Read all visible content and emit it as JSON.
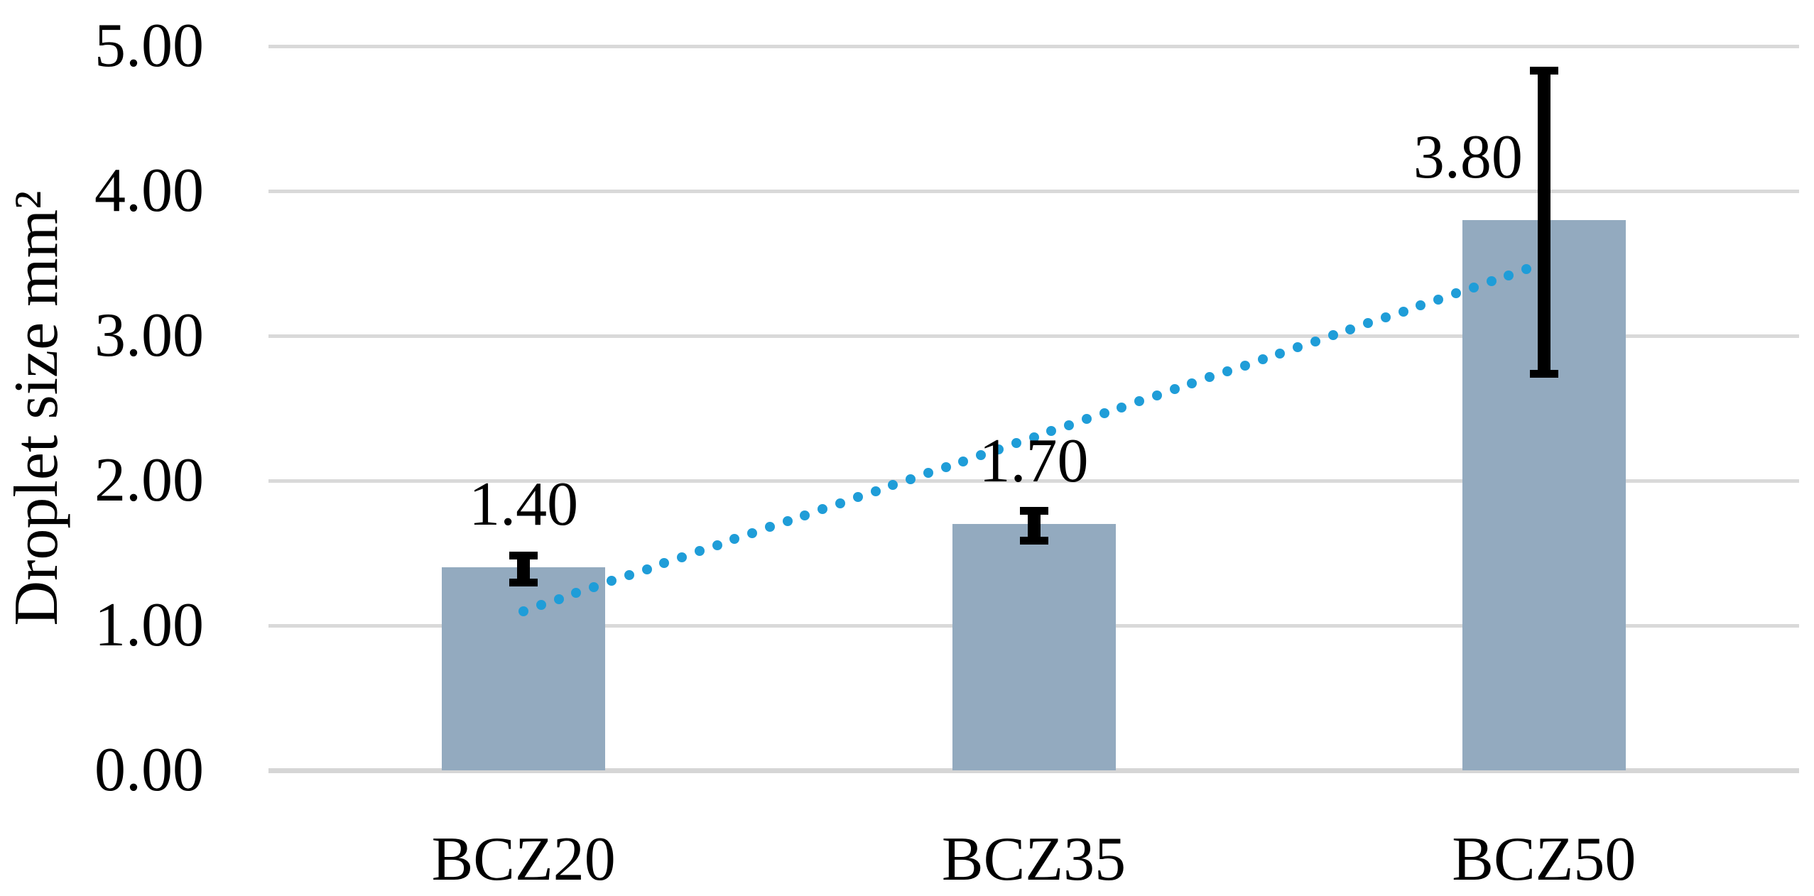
{
  "chart_data": {
    "type": "bar",
    "title": "",
    "xlabel": "",
    "ylabel": "Droplet size mm²",
    "categories": [
      "BCZ20",
      "BCZ35",
      "BCZ50"
    ],
    "series": [
      {
        "name": "Droplet size",
        "values": [
          1.4,
          1.7,
          3.8
        ],
        "data_labels": [
          "1.40",
          "1.70",
          "3.80"
        ],
        "error_bars": [
          {
            "low": 1.27,
            "high": 1.51
          },
          {
            "low": 1.56,
            "high": 1.82
          },
          {
            "low": 2.71,
            "high": 4.86
          }
        ]
      }
    ],
    "ylim": [
      0,
      5
    ],
    "ytick_step": 1,
    "ytick_labels": [
      "0.00",
      "1.00",
      "2.00",
      "3.00",
      "4.00",
      "5.00"
    ],
    "grid": true,
    "legend_position": "none",
    "trendline": {
      "type": "linear",
      "style": "dotted",
      "start_value": 1.1,
      "end_value": 3.5,
      "color": "#1F9DD8"
    },
    "data_label_x_offsets": [
      0,
      0,
      -107
    ],
    "colors": {
      "bar_fill": "#93AABF",
      "trendline_dot": "#1F9DD8",
      "gridline": "#D9D9D9",
      "axis_line": "#D6D6D6",
      "error_bar": "#000000",
      "text": "#000000"
    }
  }
}
